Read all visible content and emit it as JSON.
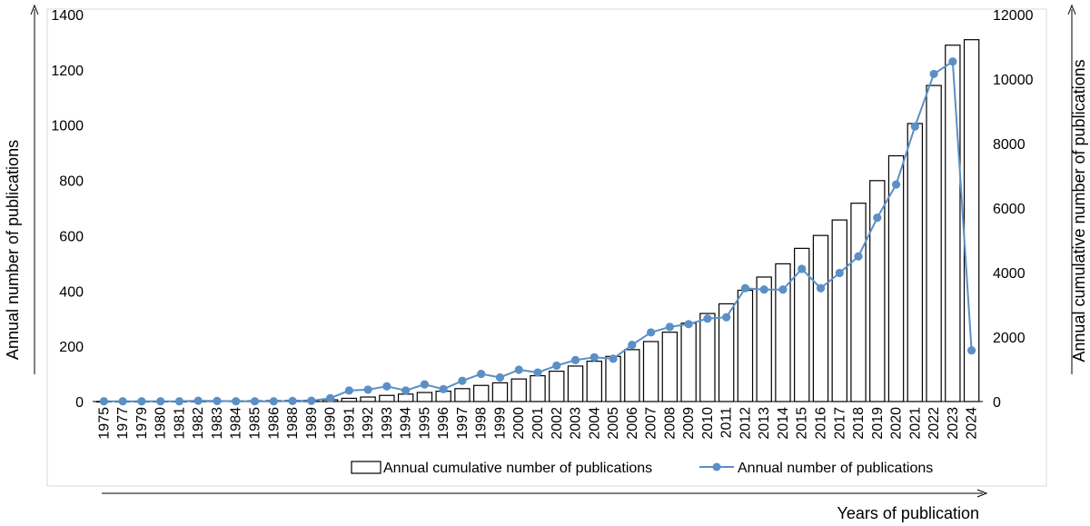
{
  "chart_data": {
    "type": "bar+line",
    "categories": [
      "1975",
      "1977",
      "1979",
      "1980",
      "1981",
      "1982",
      "1983",
      "1984",
      "1985",
      "1986",
      "1988",
      "1989",
      "1990",
      "1991",
      "1992",
      "1993",
      "1994",
      "1995",
      "1996",
      "1997",
      "1998",
      "1999",
      "2000",
      "2001",
      "2002",
      "2003",
      "2004",
      "2005",
      "2006",
      "2007",
      "2008",
      "2009",
      "2010",
      "2011",
      "2012",
      "2013",
      "2014",
      "2015",
      "2016",
      "2017",
      "2018",
      "2019",
      "2020",
      "2021",
      "2022",
      "2023",
      "2024"
    ],
    "series": [
      {
        "name": "Annual cumulative number of publications",
        "type": "bar",
        "axis": "right",
        "values": [
          1,
          2,
          3,
          4,
          5,
          10,
          15,
          20,
          25,
          30,
          35,
          40,
          55,
          100,
          140,
          190,
          230,
          280,
          320,
          400,
          500,
          580,
          700,
          800,
          940,
          1100,
          1250,
          1400,
          1610,
          1860,
          2150,
          2430,
          2730,
          3030,
          3450,
          3860,
          4270,
          4750,
          5150,
          5630,
          6150,
          6850,
          7620,
          8620,
          9800,
          11050,
          11220
        ]
      },
      {
        "name": "Annual number of publications",
        "type": "line",
        "axis": "left",
        "color": "#5b8fc7",
        "values": [
          1,
          1,
          1,
          1,
          1,
          3,
          2,
          1,
          1,
          1,
          2,
          3,
          12,
          40,
          43,
          55,
          40,
          62,
          45,
          75,
          100,
          87,
          115,
          105,
          130,
          150,
          160,
          155,
          205,
          250,
          270,
          280,
          300,
          305,
          410,
          405,
          405,
          480,
          410,
          465,
          525,
          665,
          785,
          995,
          1185,
          1230,
          185
        ]
      }
    ],
    "ylabel_left": "Annual  number of publications",
    "ylabel_right": "Annual cumulative number of publications",
    "xlabel": "Years of publication",
    "ylim_left": [
      0,
      1400
    ],
    "ylim_right": [
      0,
      12000
    ],
    "yticks_left": [
      "0",
      "200",
      "400",
      "600",
      "800",
      "1000",
      "1200",
      "1400"
    ],
    "yticks_right": [
      "0",
      "2000",
      "4000",
      "6000",
      "8000",
      "10000",
      "12000"
    ],
    "legend": {
      "bar_label": "Annual cumulative number of publications",
      "line_label": "Annual number of publications",
      "placement": "bottom"
    },
    "grid": false
  }
}
